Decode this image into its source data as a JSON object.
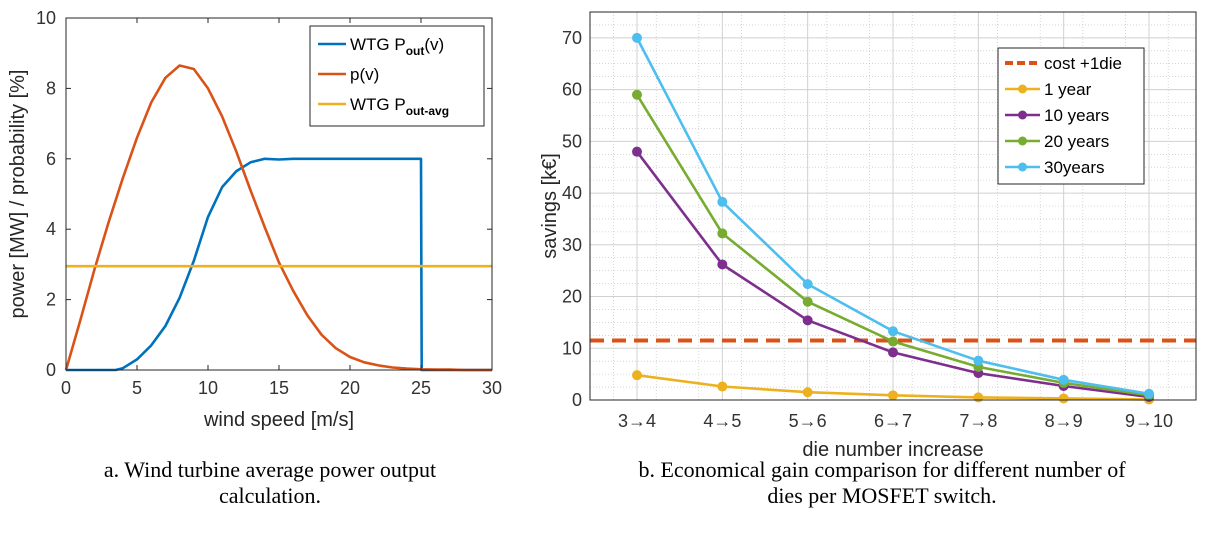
{
  "chart_data": [
    {
      "type": "line",
      "xlabel": "wind speed [m/s]",
      "ylabel": "power [MW] / probability [%]",
      "xlim": [
        0,
        30
      ],
      "ylim": [
        0,
        10
      ],
      "xticks": [
        0,
        5,
        10,
        15,
        20,
        25,
        30
      ],
      "yticks": [
        0,
        2,
        4,
        6,
        8,
        10
      ],
      "grid": false,
      "legend_position": "top-right",
      "series": [
        {
          "name": "WTG P_out(v)",
          "legend_main": "WTG P",
          "legend_sub": "out",
          "legend_suffix": "(v)",
          "color": "#0072BD",
          "x": [
            0,
            2,
            3.5,
            4,
            5,
            6,
            7,
            8,
            9,
            10,
            11,
            12,
            13,
            14,
            15,
            16,
            18,
            20,
            22,
            25,
            25.05,
            26,
            28,
            30
          ],
          "y": [
            0,
            0,
            0,
            0.05,
            0.3,
            0.7,
            1.25,
            2.05,
            3.1,
            4.35,
            5.2,
            5.65,
            5.9,
            6.0,
            5.98,
            6.0,
            6.0,
            6.0,
            6.0,
            6.0,
            0,
            0,
            0,
            0
          ]
        },
        {
          "name": "p(v)",
          "legend_main": "p(v)",
          "legend_sub": "",
          "legend_suffix": "",
          "color": "#D95319",
          "x": [
            0,
            1,
            2,
            3,
            4,
            5,
            6,
            7,
            8,
            9,
            10,
            11,
            12,
            13,
            14,
            15,
            16,
            17,
            18,
            19,
            20,
            21,
            22,
            23,
            24,
            25,
            26,
            27,
            28,
            29,
            30
          ],
          "y": [
            0,
            1.4,
            2.85,
            4.2,
            5.45,
            6.6,
            7.6,
            8.3,
            8.65,
            8.55,
            8.0,
            7.2,
            6.2,
            5.1,
            4.05,
            3.05,
            2.25,
            1.55,
            1.0,
            0.62,
            0.37,
            0.22,
            0.13,
            0.07,
            0.04,
            0.02,
            0.01,
            0.01,
            0,
            0,
            0
          ]
        },
        {
          "name": "WTG P_out-avg",
          "legend_main": "WTG P",
          "legend_sub": "out-avg",
          "legend_suffix": "",
          "color": "#EDB120",
          "x": [
            0,
            30
          ],
          "y": [
            2.95,
            2.95
          ]
        }
      ]
    },
    {
      "type": "line",
      "xlabel": "die number increase",
      "ylabel": "savings [k€]",
      "categories": [
        "3→4",
        "4→5",
        "5→6",
        "6→7",
        "7→8",
        "8→9",
        "9→10"
      ],
      "ylim": [
        0,
        75
      ],
      "yticks": [
        0,
        10,
        20,
        30,
        40,
        50,
        60,
        70
      ],
      "grid": true,
      "legend_position": "top-right",
      "series": [
        {
          "name": "cost +1die",
          "color": "#D95319",
          "dashed": true,
          "values": [
            11.5,
            11.5,
            11.5,
            11.5,
            11.5,
            11.5,
            11.5
          ]
        },
        {
          "name": "1 year",
          "color": "#EDB120",
          "values": [
            4.8,
            2.6,
            1.5,
            0.9,
            0.5,
            0.3,
            0.1
          ]
        },
        {
          "name": "10 years",
          "color": "#7E2F8E",
          "values": [
            48,
            26.2,
            15.4,
            9.2,
            5.2,
            2.7,
            0.6
          ]
        },
        {
          "name": "20 years",
          "color": "#77AC30",
          "values": [
            59,
            32.2,
            19,
            11.3,
            6.4,
            3.3,
            0.9
          ]
        },
        {
          "name": "30years",
          "color": "#4DBEEE",
          "values": [
            70,
            38.3,
            22.4,
            13.3,
            7.6,
            3.9,
            1.2
          ]
        }
      ]
    }
  ],
  "captions": {
    "left_line1": "a. Wind turbine average power output",
    "left_line2": "calculation.",
    "right_line1": "b. Economical gain comparison for different number of",
    "right_line2": "dies per MOSFET switch."
  }
}
